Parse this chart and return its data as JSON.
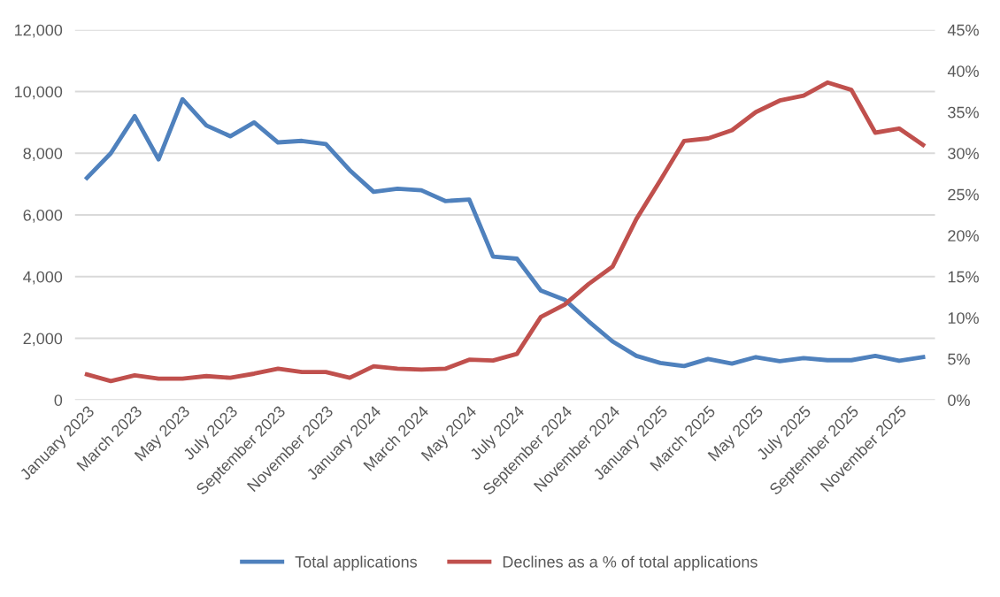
{
  "chart_data": {
    "type": "line",
    "categories": [
      "January 2023",
      null,
      "March 2023",
      null,
      "May 2023",
      null,
      "July 2023",
      null,
      "September 2023",
      null,
      "November 2023",
      null,
      "January 2024",
      null,
      "March 2024",
      null,
      "May 2024",
      null,
      "July 2024",
      null,
      "September 2024",
      null,
      "November 2024",
      null,
      "January 2025",
      null,
      "March 2025",
      null,
      "May 2025",
      null,
      "July 2025",
      null,
      "September 2025",
      null,
      "November 2025",
      null
    ],
    "series": [
      {
        "name": "Total applications",
        "color": "#4f81bd",
        "values": [
          7200,
          8000,
          9200,
          7800,
          9750,
          8900,
          8550,
          9000,
          8350,
          8400,
          8300,
          7450,
          6750,
          6850,
          6800,
          6450,
          6500,
          4650,
          4580,
          3550,
          3250,
          2550,
          1900,
          1430,
          1200,
          1100,
          1330,
          1180,
          1390,
          1260,
          1360,
          1290,
          1290,
          1430,
          1270,
          1390
        ]
      },
      {
        "name": "Declines as a % of total applications",
        "color": "#c0504d",
        "axis": "y2",
        "values": [
          3.1,
          2.3,
          3.0,
          2.6,
          2.6,
          2.9,
          2.7,
          3.2,
          3.8,
          3.4,
          3.4,
          2.7,
          4.1,
          3.8,
          3.7,
          3.8,
          4.9,
          4.8,
          5.6,
          10.1,
          11.6,
          14.1,
          16.2,
          22.0,
          26.7,
          31.5,
          31.8,
          32.8,
          35.0,
          36.4,
          37.0,
          38.6,
          37.7,
          32.5,
          33.0,
          31.0
        ]
      }
    ],
    "ylim": [
      0,
      12000
    ],
    "yticks": [
      {
        "value": 0,
        "label": "0"
      },
      {
        "value": 2000,
        "label": "2,000"
      },
      {
        "value": 4000,
        "label": "4,000"
      },
      {
        "value": 6000,
        "label": "6,000"
      },
      {
        "value": 8000,
        "label": "8,000"
      },
      {
        "value": 10000,
        "label": "10,000"
      },
      {
        "value": 12000,
        "label": "12,000"
      }
    ],
    "y2lim": [
      0,
      45
    ],
    "y2ticks": [
      {
        "value": 0,
        "label": "0%"
      },
      {
        "value": 5,
        "label": "5%"
      },
      {
        "value": 10,
        "label": "10%"
      },
      {
        "value": 15,
        "label": "15%"
      },
      {
        "value": 20,
        "label": "20%"
      },
      {
        "value": 25,
        "label": "25%"
      },
      {
        "value": 30,
        "label": "30%"
      },
      {
        "value": 35,
        "label": "35%"
      },
      {
        "value": 40,
        "label": "40%"
      },
      {
        "value": 45,
        "label": "45%"
      }
    ],
    "grid": "y",
    "legend": "bottom",
    "marker": "none",
    "line_style": "solid"
  }
}
